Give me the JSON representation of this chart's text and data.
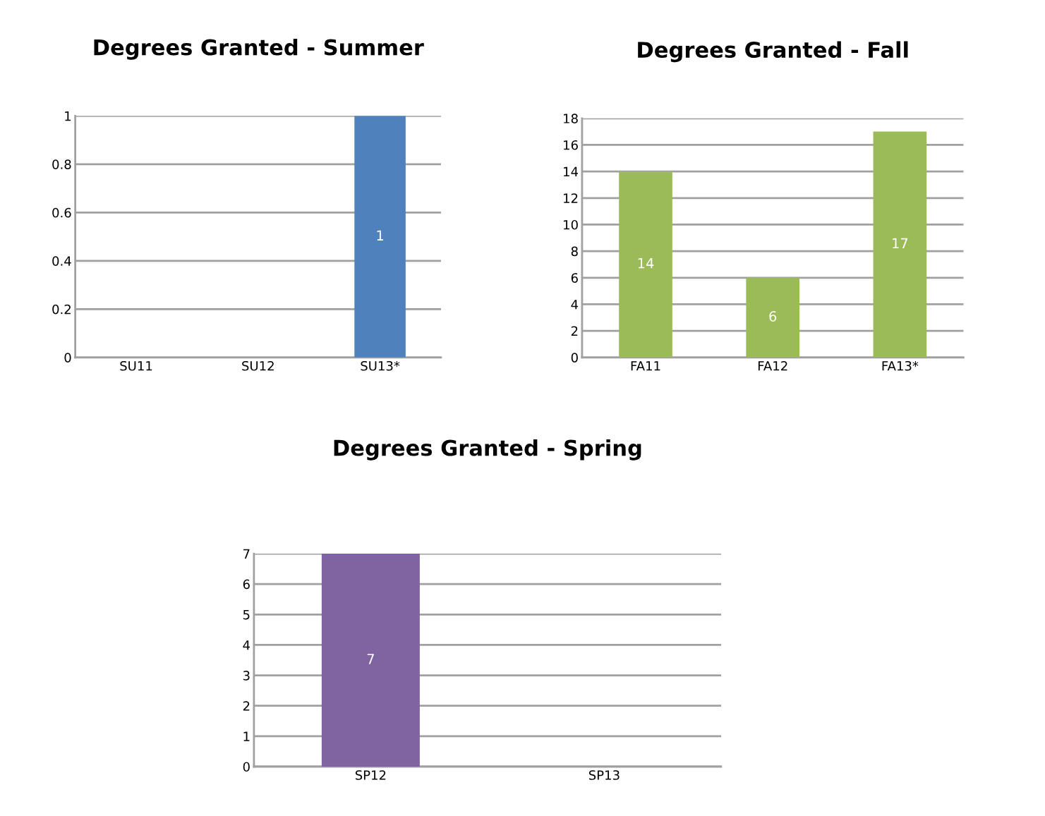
{
  "chart_data": [
    {
      "type": "bar",
      "title": "Degrees Granted - Summer",
      "categories": [
        "SU11",
        "SU12",
        "SU13*"
      ],
      "values": [
        0,
        0,
        1
      ],
      "value_labels": [
        null,
        null,
        "1"
      ],
      "color": "#4f81bd",
      "ylim": [
        0,
        1
      ],
      "yticks": [
        0,
        0.2,
        0.4,
        0.6,
        0.8,
        1
      ],
      "grid": "y",
      "legend": false
    },
    {
      "type": "bar",
      "title": "Degrees Granted - Fall",
      "categories": [
        "FA11",
        "FA12",
        "FA13*"
      ],
      "values": [
        14,
        6,
        17
      ],
      "data_labels": true,
      "color": "#9bbb59",
      "ylim": [
        0,
        18
      ],
      "yticks": [
        0,
        2,
        4,
        6,
        8,
        10,
        12,
        14,
        16,
        18
      ],
      "grid": "y",
      "legend": false
    },
    {
      "type": "bar",
      "title": "Degrees Granted - Spring",
      "categories": [
        "SP12",
        "SP13"
      ],
      "values": [
        7,
        0
      ],
      "value_labels": [
        "7",
        null
      ],
      "color": "#8064a2",
      "ylim": [
        0,
        7
      ],
      "yticks": [
        0,
        1,
        2,
        3,
        4,
        5,
        6,
        7
      ],
      "grid": "y",
      "legend": false
    }
  ]
}
